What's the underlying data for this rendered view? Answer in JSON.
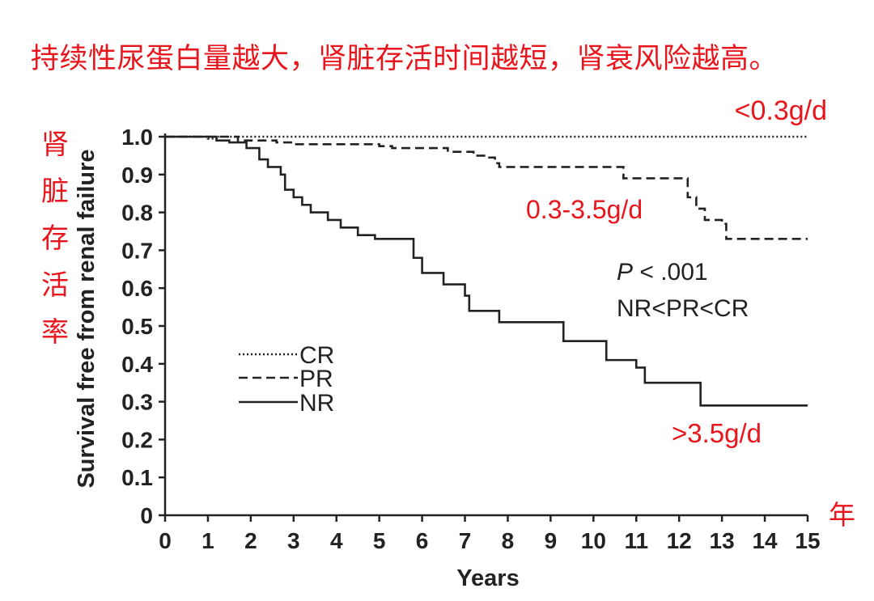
{
  "header": {
    "title": "持续性尿蛋白量越大，肾脏存活时间越短，肾衰风险越高。",
    "ylabel_cn": [
      "肾",
      "脏",
      "存",
      "活",
      "率"
    ]
  },
  "chart_data": {
    "type": "line",
    "subtype": "kaplan-meier step",
    "xlabel": "Years",
    "ylabel": "Survival free from renal failure",
    "xlim": [
      0,
      15
    ],
    "ylim": [
      0,
      1.0
    ],
    "x_ticks": [
      "0",
      "1",
      "2",
      "3",
      "4",
      "5",
      "6",
      "7",
      "8",
      "9",
      "10",
      "11",
      "12",
      "13",
      "14",
      "15"
    ],
    "y_ticks": [
      "0",
      "0.1",
      "0.2",
      "0.3",
      "0.4",
      "0.5",
      "0.6",
      "0.7",
      "0.8",
      "0.9",
      "1.0"
    ],
    "x_unit_label": "年",
    "grid": false,
    "legend_position": "lower-left",
    "series": [
      {
        "name": "CR",
        "style": "dotted",
        "points": [
          [
            0,
            1.0
          ],
          [
            1,
            0.995
          ],
          [
            1.2,
            1.0
          ],
          [
            15,
            1.0
          ]
        ],
        "annotation": "<0.3g/d"
      },
      {
        "name": "PR",
        "style": "dashed",
        "points": [
          [
            0,
            1.0
          ],
          [
            1.2,
            1.0
          ],
          [
            1.7,
            0.99
          ],
          [
            2.6,
            0.985
          ],
          [
            3.0,
            0.98
          ],
          [
            5.0,
            0.975
          ],
          [
            5.3,
            0.97
          ],
          [
            6.0,
            0.97
          ],
          [
            6.6,
            0.96
          ],
          [
            7.2,
            0.95
          ],
          [
            7.5,
            0.945
          ],
          [
            7.7,
            0.93
          ],
          [
            7.8,
            0.92
          ],
          [
            10.7,
            0.92
          ],
          [
            10.7,
            0.89
          ],
          [
            11.8,
            0.89
          ],
          [
            12.2,
            0.84
          ],
          [
            12.4,
            0.81
          ],
          [
            12.6,
            0.78
          ],
          [
            13.0,
            0.77
          ],
          [
            13.1,
            0.73
          ],
          [
            15,
            0.73
          ]
        ],
        "annotation": "0.3-3.5g/d"
      },
      {
        "name": "NR",
        "style": "solid",
        "points": [
          [
            0,
            1.0
          ],
          [
            1.0,
            1.0
          ],
          [
            1.2,
            0.99
          ],
          [
            1.5,
            0.985
          ],
          [
            1.9,
            0.97
          ],
          [
            2.2,
            0.94
          ],
          [
            2.4,
            0.92
          ],
          [
            2.7,
            0.9
          ],
          [
            2.8,
            0.86
          ],
          [
            3.0,
            0.84
          ],
          [
            3.2,
            0.82
          ],
          [
            3.4,
            0.8
          ],
          [
            3.7,
            0.8
          ],
          [
            3.8,
            0.78
          ],
          [
            4.1,
            0.76
          ],
          [
            4.5,
            0.74
          ],
          [
            4.9,
            0.73
          ],
          [
            5.7,
            0.73
          ],
          [
            5.8,
            0.68
          ],
          [
            6.0,
            0.64
          ],
          [
            6.5,
            0.61
          ],
          [
            7.0,
            0.58
          ],
          [
            7.1,
            0.54
          ],
          [
            7.8,
            0.51
          ],
          [
            9.3,
            0.51
          ],
          [
            9.3,
            0.46
          ],
          [
            10.3,
            0.46
          ],
          [
            10.3,
            0.41
          ],
          [
            11.0,
            0.39
          ],
          [
            11.2,
            0.35
          ],
          [
            12.5,
            0.35
          ],
          [
            12.5,
            0.29
          ],
          [
            15,
            0.29
          ]
        ],
        "annotation": ">3.5g/d"
      }
    ],
    "stat_text": [
      "P < .001",
      "NR<PR<CR"
    ]
  },
  "colors": {
    "accent_red": "#e8161c",
    "ink": "#222222"
  }
}
